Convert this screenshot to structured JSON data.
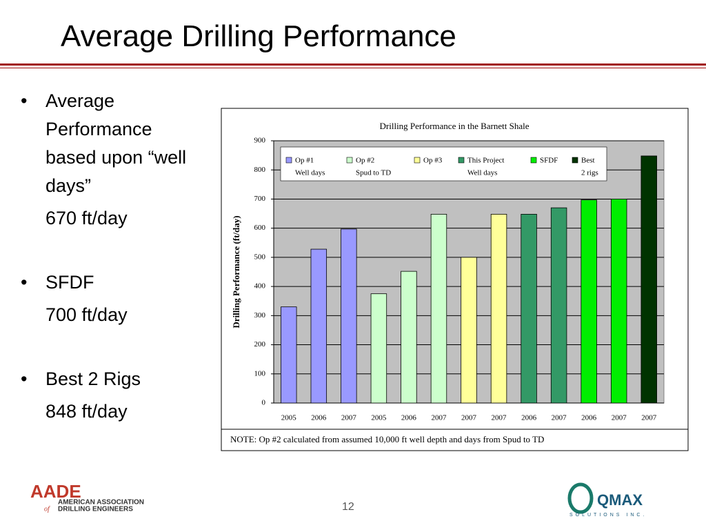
{
  "slide": {
    "title": "Average Drilling Performance",
    "bullets": [
      {
        "text": "Average Performance based upon “well days”",
        "detail": "670 ft/day"
      },
      {
        "text": "SFDF",
        "detail": "700 ft/day"
      },
      {
        "text": "Best 2 Rigs",
        "detail": "848 ft/day"
      }
    ],
    "page_number": "12",
    "logo_left": {
      "mark": "AADE",
      "line1": "AMERICAN ASSOCIATION",
      "line2a": "of",
      "line2b": "DRILLING ENGINEERS"
    },
    "logo_right": {
      "mark": "QMAX",
      "tagline": "SOLUTIONS INC."
    }
  },
  "chart_data": {
    "type": "bar",
    "title": "Drilling Performance in the Barnett Shale",
    "y_label": "Drilling Performance (ft/day)",
    "note": "NOTE:  Op #2 calculated from assumed 10,000 ft well depth and days from Spud to TD",
    "categories": [
      "2005",
      "2006",
      "2007",
      "2005",
      "2006",
      "2007",
      "2007",
      "2007",
      "2006",
      "2007",
      "2006",
      "2007",
      "2007"
    ],
    "series": [
      {
        "name": "Op #1",
        "description": "Well days",
        "color": "#9999ff",
        "values": [
          330,
          528,
          597,
          null,
          null,
          null,
          null,
          null,
          null,
          null,
          null,
          null,
          null
        ]
      },
      {
        "name": "Op #2",
        "description": "Spud to TD",
        "color": "#ccffcc",
        "values": [
          null,
          null,
          null,
          375,
          452,
          648,
          null,
          null,
          null,
          null,
          null,
          null,
          null
        ]
      },
      {
        "name": "Op #3",
        "color": "#ffff99",
        "values": [
          null,
          null,
          null,
          null,
          null,
          null,
          500,
          648,
          null,
          null,
          null,
          null,
          null
        ]
      },
      {
        "name": "This Project",
        "description": "Well days",
        "color": "#339966",
        "values": [
          null,
          null,
          null,
          null,
          null,
          null,
          null,
          null,
          648,
          670,
          null,
          null,
          null
        ]
      },
      {
        "name": "SFDF",
        "color": "#00ee00",
        "values": [
          null,
          null,
          null,
          null,
          null,
          null,
          null,
          null,
          null,
          null,
          697,
          700,
          null
        ]
      },
      {
        "name": "Best",
        "description": "2 rigs",
        "color": "#003300",
        "values": [
          null,
          null,
          null,
          null,
          null,
          null,
          null,
          null,
          null,
          null,
          null,
          null,
          848
        ]
      }
    ],
    "ylim": [
      0,
      900
    ],
    "yticks": [
      0,
      100,
      200,
      300,
      400,
      500,
      600,
      700,
      800,
      900
    ],
    "grid": true,
    "plot_background": "#c0c0c0"
  }
}
